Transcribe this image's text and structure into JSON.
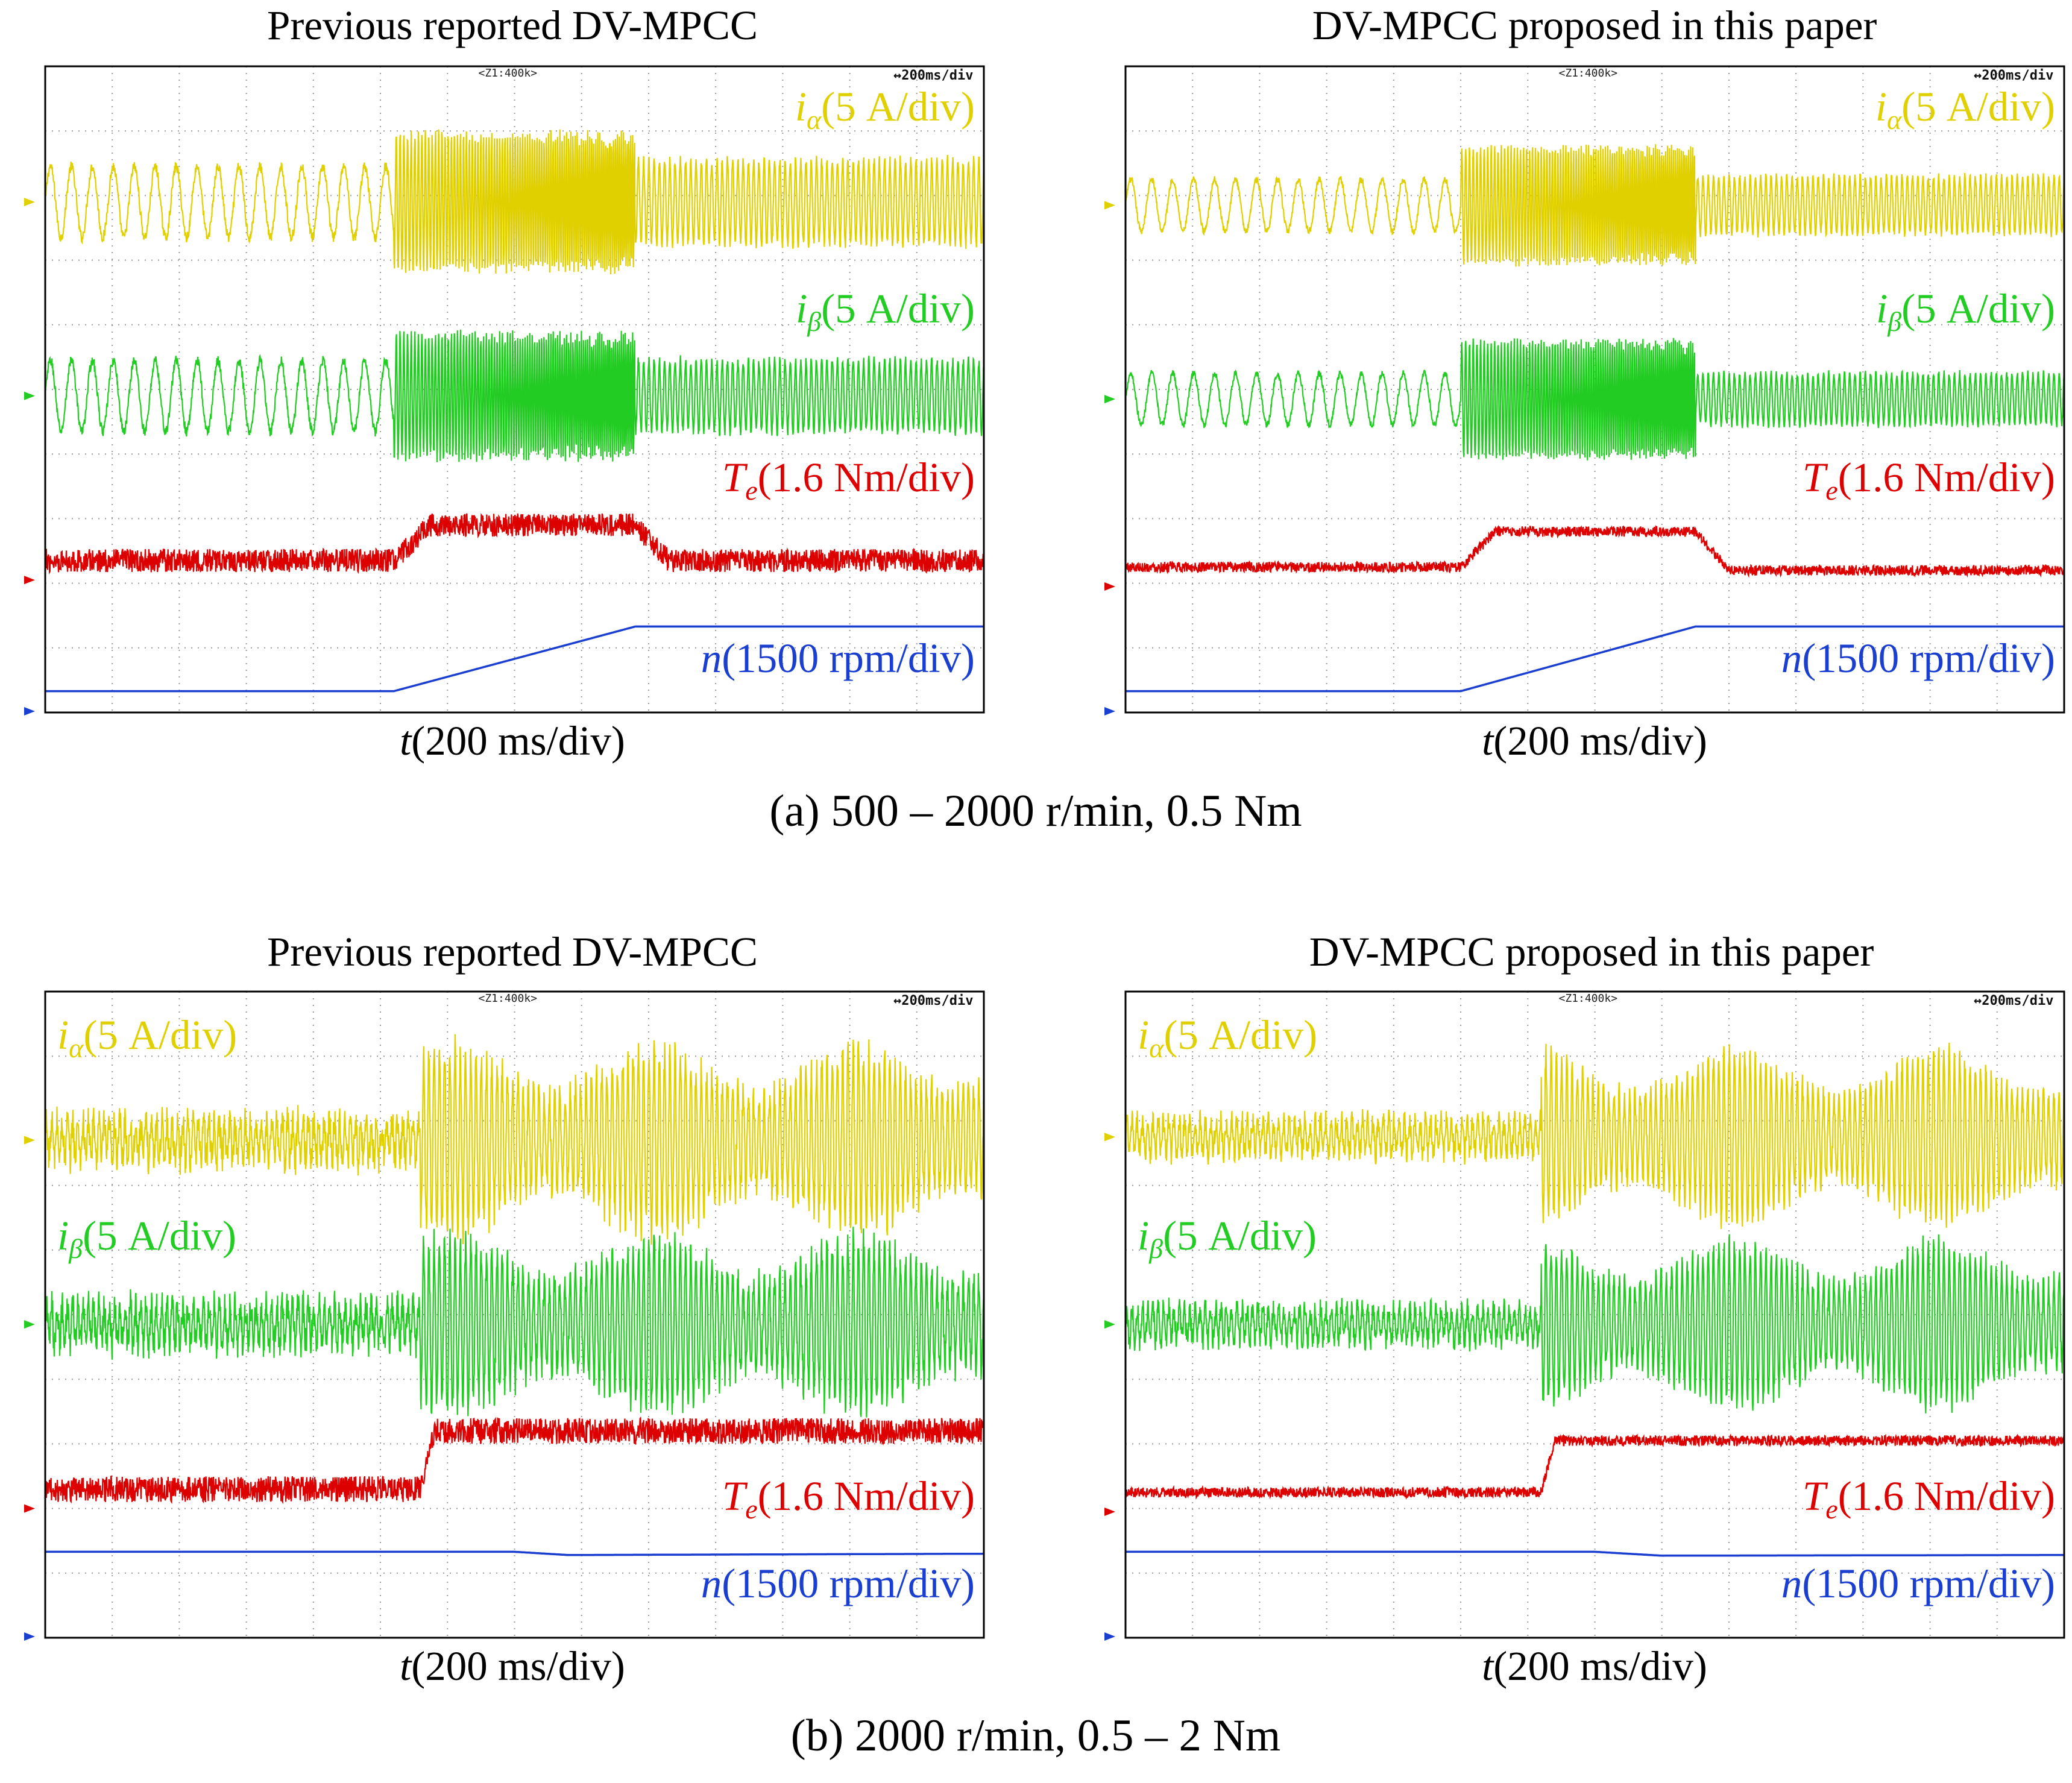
{
  "figure": {
    "captions": [
      "(a) 500 – 2000 r/min, 0.5 Nm",
      "(b) 2000 r/min, 0.5 – 2 Nm"
    ]
  },
  "chart_data": [
    {
      "type": "line",
      "id": "a-prev",
      "title": "Previous reported DV-MPCC",
      "xlabel": "t(200 ms/div)",
      "xlim": [
        0,
        1.4
      ],
      "time_div_s": 0.2,
      "zoom_text": "<Z1:400k>",
      "timebase_text": "↔200ms/div",
      "label_side": "right",
      "series": [
        {
          "symbol": "i",
          "sub": "α",
          "label": "(5 A/div)",
          "color": "#e0d000",
          "kind": "sine",
          "offset_div": 7.9,
          "cycles_per_s": [
            32,
            128
          ],
          "amp_div": [
            0.55,
            1.05,
            0.65
          ],
          "noise_div": 0.08
        },
        {
          "symbol": "i",
          "sub": "β",
          "label": "(5 A/div)",
          "color": "#22cc22",
          "kind": "sine",
          "offset_div": 4.9,
          "cycles_per_s": [
            32,
            128
          ],
          "amp_div": [
            0.55,
            0.95,
            0.55
          ],
          "noise_div": 0.08
        },
        {
          "symbol": "T",
          "sub": "e",
          "label": "(1.6 Nm/div)",
          "color": "#dd0000",
          "kind": "noisy",
          "level_div": [
            2.35,
            2.9,
            2.35
          ],
          "noise_div": 0.18
        },
        {
          "symbol": "n",
          "sub": "",
          "label": "(1500 rpm/div)",
          "color": "#1a3fd0",
          "kind": "line",
          "points": [
            [
              0,
              0.33
            ],
            [
              0.52,
              0.33
            ],
            [
              0.88,
              1.33
            ],
            [
              1.4,
              1.33
            ]
          ]
        }
      ],
      "ramp_start_s": 0.52,
      "ramp_end_s": 0.88
    },
    {
      "type": "line",
      "id": "a-prop",
      "title": "DV-MPCC proposed in this paper",
      "xlabel": "t(200 ms/div)",
      "xlim": [
        0,
        1.4
      ],
      "time_div_s": 0.2,
      "zoom_text": "<Z1:400k>",
      "timebase_text": "↔200ms/div",
      "label_side": "right",
      "series": [
        {
          "symbol": "i",
          "sub": "α",
          "label": "(5 A/div)",
          "color": "#e0d000",
          "kind": "sine",
          "offset_div": 7.85,
          "cycles_per_s": [
            32,
            128
          ],
          "amp_div": [
            0.4,
            0.9,
            0.45
          ],
          "noise_div": 0.05
        },
        {
          "symbol": "i",
          "sub": "β",
          "label": "(5 A/div)",
          "color": "#22cc22",
          "kind": "sine",
          "offset_div": 4.85,
          "cycles_per_s": [
            32,
            128
          ],
          "amp_div": [
            0.4,
            0.9,
            0.4
          ],
          "noise_div": 0.05
        },
        {
          "symbol": "T",
          "sub": "e",
          "label": "(1.6 Nm/div)",
          "color": "#dd0000",
          "kind": "noisy",
          "level_div": [
            2.25,
            2.8,
            2.2
          ],
          "noise_div": 0.08
        },
        {
          "symbol": "n",
          "sub": "",
          "label": "(1500 rpm/div)",
          "color": "#1a3fd0",
          "kind": "line",
          "points": [
            [
              0,
              0.33
            ],
            [
              0.5,
              0.33
            ],
            [
              0.85,
              1.33
            ],
            [
              1.4,
              1.33
            ]
          ]
        }
      ],
      "ramp_start_s": 0.5,
      "ramp_end_s": 0.85
    },
    {
      "type": "line",
      "id": "b-prev",
      "title": "Previous reported DV-MPCC",
      "xlabel": "t(200 ms/div)",
      "xlim": [
        0,
        1.4
      ],
      "time_div_s": 0.2,
      "zoom_text": "<Z1:400k>",
      "timebase_text": "↔200ms/div",
      "label_side": "left",
      "series": [
        {
          "symbol": "i",
          "sub": "α",
          "label": "(5 A/div)",
          "color": "#e0d000",
          "kind": "sine",
          "offset_div": 7.7,
          "cycles_per_s": [
            128,
            128
          ],
          "amp_div": [
            0.3,
            1.4,
            1.4
          ],
          "noise_div": 0.25
        },
        {
          "symbol": "i",
          "sub": "β",
          "label": "(5 A/div)",
          "color": "#22cc22",
          "kind": "sine",
          "offset_div": 4.85,
          "cycles_per_s": [
            128,
            128
          ],
          "amp_div": [
            0.3,
            1.3,
            1.3
          ],
          "noise_div": 0.25
        },
        {
          "symbol": "T",
          "sub": "e",
          "label": "(1.6 Nm/div)",
          "color": "#dd0000",
          "kind": "noisy",
          "level_div": [
            2.3,
            3.2,
            3.2
          ],
          "noise_div": 0.2
        },
        {
          "symbol": "n",
          "sub": "",
          "label": "(1500 rpm/div)",
          "color": "#1a3fd0",
          "kind": "line",
          "points": [
            [
              0,
              1.33
            ],
            [
              0.7,
              1.33
            ],
            [
              0.78,
              1.28
            ],
            [
              1.4,
              1.3
            ]
          ]
        }
      ],
      "ramp_start_s": 0.56,
      "ramp_end_s": 0.6
    },
    {
      "type": "line",
      "id": "b-prop",
      "title": "DV-MPCC proposed in this paper",
      "xlabel": "t(200 ms/div)",
      "xlim": [
        0,
        1.4
      ],
      "time_div_s": 0.2,
      "zoom_text": "<Z1:400k>",
      "timebase_text": "↔200ms/div",
      "label_side": "left",
      "series": [
        {
          "symbol": "i",
          "sub": "α",
          "label": "(5 A/div)",
          "color": "#e0d000",
          "kind": "sine",
          "offset_div": 7.75,
          "cycles_per_s": [
            128,
            128
          ],
          "amp_div": [
            0.25,
            1.3,
            1.3
          ],
          "noise_div": 0.18
        },
        {
          "symbol": "i",
          "sub": "β",
          "label": "(5 A/div)",
          "color": "#22cc22",
          "kind": "sine",
          "offset_div": 4.85,
          "cycles_per_s": [
            128,
            128
          ],
          "amp_div": [
            0.25,
            1.25,
            1.25
          ],
          "noise_div": 0.18
        },
        {
          "symbol": "T",
          "sub": "e",
          "label": "(1.6 Nm/div)",
          "color": "#dd0000",
          "kind": "noisy",
          "level_div": [
            2.25,
            3.05,
            3.05
          ],
          "noise_div": 0.08
        },
        {
          "symbol": "n",
          "sub": "",
          "label": "(1500 rpm/div)",
          "color": "#1a3fd0",
          "kind": "line",
          "points": [
            [
              0,
              1.33
            ],
            [
              0.7,
              1.33
            ],
            [
              0.8,
              1.27
            ],
            [
              1.4,
              1.28
            ]
          ]
        }
      ],
      "ramp_start_s": 0.62,
      "ramp_end_s": 0.64
    }
  ]
}
